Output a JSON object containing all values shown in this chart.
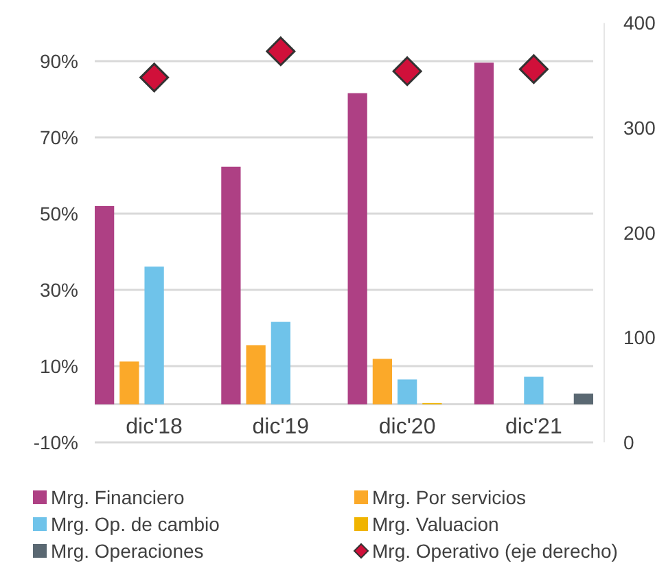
{
  "chart_data": {
    "type": "bar",
    "categories": [
      "dic'18",
      "dic'19",
      "dic'20",
      "dic'21"
    ],
    "series": [
      {
        "name": "Mrg. Financiero",
        "color": "#ae4084",
        "values": [
          52,
          62.3,
          81.6,
          89.6
        ]
      },
      {
        "name": "Mrg. Por servicios",
        "color": "#fba929",
        "values": [
          11.2,
          15.5,
          11.9,
          0
        ]
      },
      {
        "name": "Mrg. Op. de cambio",
        "color": "#6fc3ea",
        "values": [
          36.1,
          21.6,
          6.5,
          7.2
        ]
      },
      {
        "name": "Mrg. Valuacion",
        "color": "#f0b400",
        "values": [
          0,
          0,
          0.3,
          0
        ]
      },
      {
        "name": "Mrg. Operaciones",
        "color": "#5a6872",
        "values": [
          0,
          0,
          0,
          2.8
        ]
      },
      {
        "name": "Mrg. Operativo (eje derecho)",
        "color": "#d0103a",
        "type": "scatter",
        "axis": "y2",
        "marker": "diamond",
        "values": [
          348,
          373,
          354,
          356
        ]
      }
    ],
    "ylim": [
      -10,
      100
    ],
    "yticks": [
      {
        "value": -10,
        "label": "-10%"
      },
      {
        "value": 10,
        "label": "10%"
      },
      {
        "value": 30,
        "label": "30%"
      },
      {
        "value": 50,
        "label": "50%"
      },
      {
        "value": 70,
        "label": "70%"
      },
      {
        "value": 90,
        "label": "90%"
      }
    ],
    "y2lim": [
      0,
      400
    ],
    "y2ticks": [
      0,
      100,
      200,
      300,
      400
    ],
    "grid": "y",
    "legend": "bottom"
  }
}
